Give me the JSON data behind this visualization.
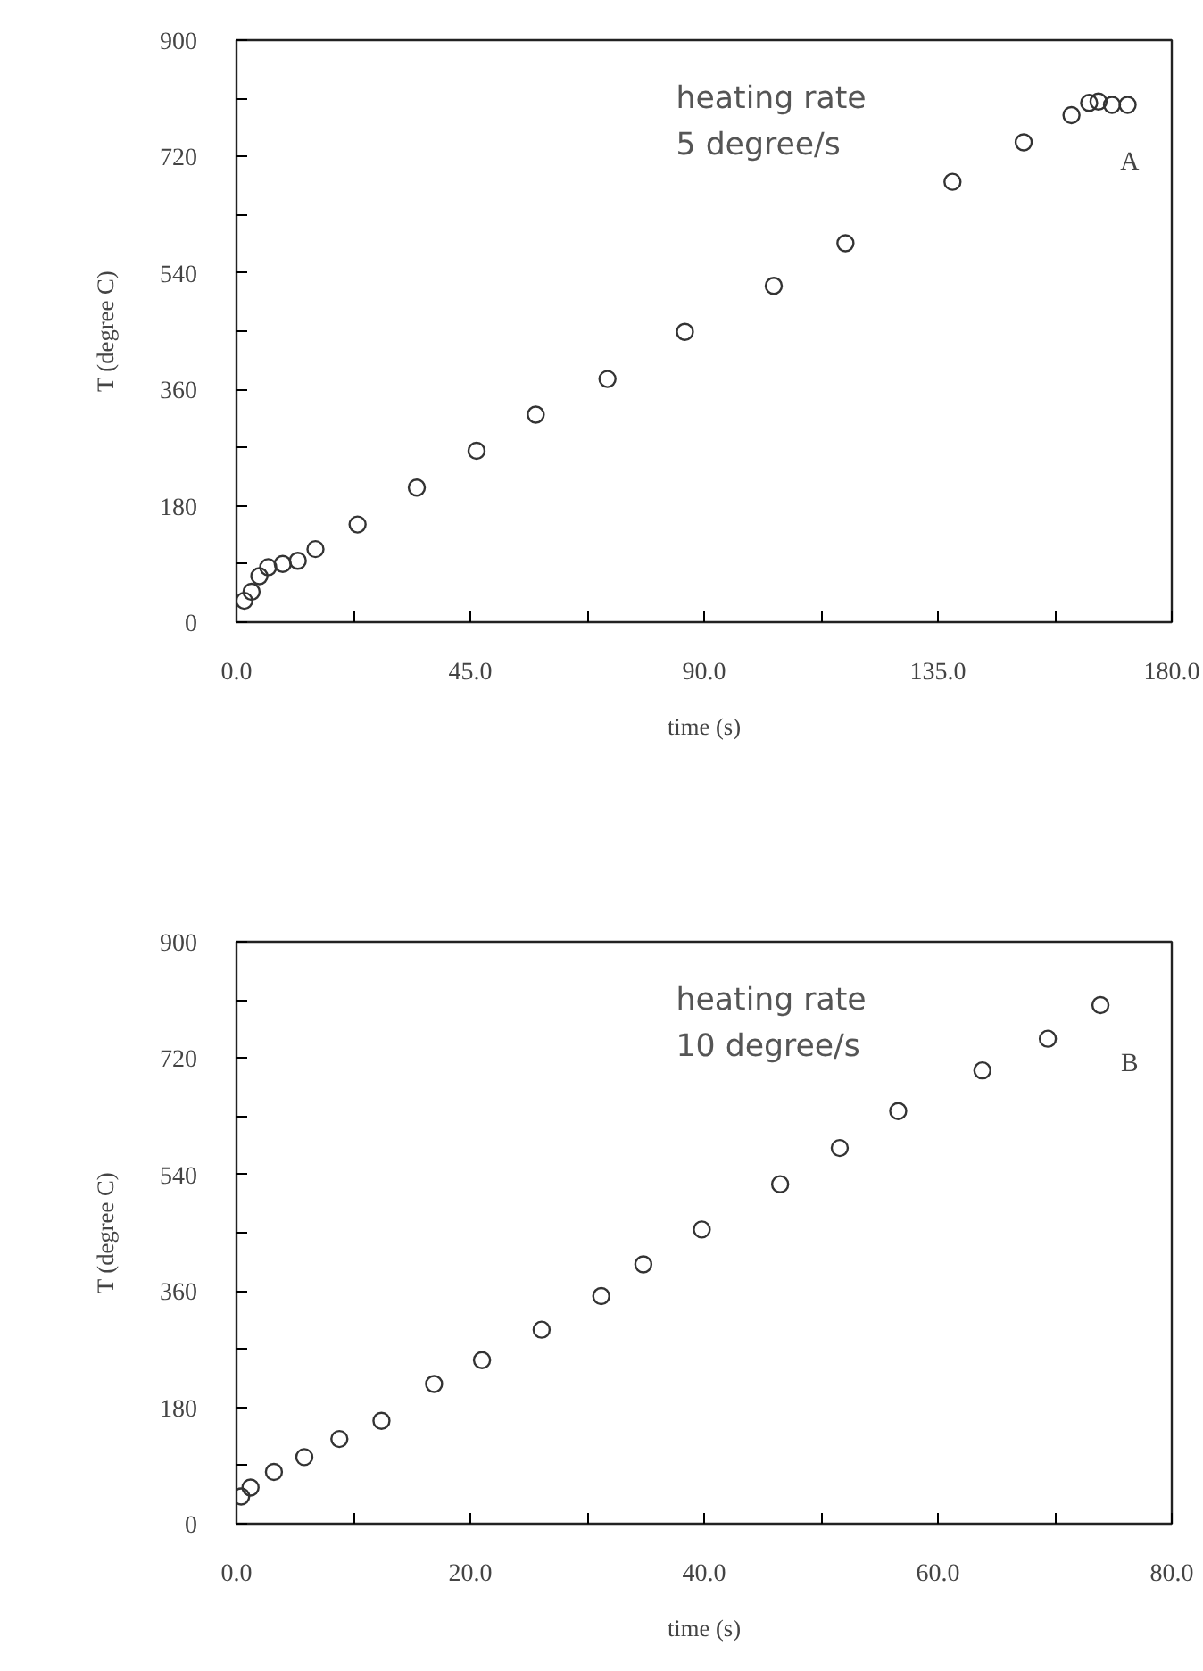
{
  "chart_data": [
    {
      "type": "scatter",
      "xlabel": "time (s)",
      "ylabel": "T (degree C)",
      "annotations": [
        "heating rate\n5 degree/s",
        "A"
      ],
      "x": [
        1.5,
        2.9,
        4.4,
        6.1,
        8.9,
        11.8,
        15.2,
        23.3,
        34.7,
        46.2,
        57.6,
        71.4,
        86.3,
        103.4,
        117.2,
        137.8,
        151.5,
        160.7,
        164.1,
        165.9,
        168.5,
        171.5
      ],
      "series": [
        {
          "color": "#333333",
          "values": [
            33,
            47,
            71,
            85,
            90,
            95,
            113,
            151,
            208,
            265,
            321,
            376,
            449,
            520,
            586,
            681,
            742,
            784,
            803,
            805,
            800,
            800
          ]
        }
      ],
      "xlim": [
        0,
        180
      ],
      "ylim": [
        0,
        900
      ],
      "xticks": [
        {
          "value": 0,
          "label": "0.0"
        },
        {
          "value": 22.5,
          "label": null
        },
        {
          "value": 45,
          "label": "45.0"
        },
        {
          "value": 67.5,
          "label": null
        },
        {
          "value": 90,
          "label": "90.0"
        },
        {
          "value": 112.5,
          "label": null
        },
        {
          "value": 135,
          "label": "135.0"
        },
        {
          "value": 157.5,
          "label": null
        },
        {
          "value": 180,
          "label": "180.0"
        }
      ],
      "yticks": [
        0,
        {
          "value": 90,
          "label": null
        },
        180,
        {
          "value": 270,
          "label": null
        },
        360,
        {
          "value": 450,
          "label": null
        },
        540,
        {
          "value": 630,
          "label": null
        },
        720,
        {
          "value": 810,
          "label": null
        },
        900
      ],
      "grid": false,
      "marker": "circle"
    },
    {
      "type": "scatter",
      "xlabel": "time (s)",
      "ylabel": "T (degree C)",
      "annotations": [
        "heating rate\n10 degree/s",
        "B"
      ],
      "x": [
        0.4,
        1.2,
        3.2,
        5.8,
        8.8,
        12.4,
        16.9,
        21.0,
        26.1,
        31.2,
        34.8,
        39.8,
        46.5,
        51.6,
        56.6,
        63.8,
        69.4,
        73.9
      ],
      "series": [
        {
          "color": "#333333",
          "values": [
            42,
            56,
            80,
            103,
            131,
            159,
            216,
            253,
            300,
            352,
            401,
            455,
            525,
            581,
            638,
            701,
            750,
            802
          ]
        }
      ],
      "xlim": [
        0,
        80
      ],
      "ylim": [
        0,
        900
      ],
      "xticks": [
        {
          "value": 0,
          "label": "0.0"
        },
        {
          "value": 10,
          "label": null
        },
        {
          "value": 20,
          "label": "20.0"
        },
        {
          "value": 30,
          "label": null
        },
        {
          "value": 40,
          "label": "40.0"
        },
        {
          "value": 50,
          "label": null
        },
        {
          "value": 60,
          "label": "60.0"
        },
        {
          "value": 70,
          "label": null
        },
        {
          "value": 80,
          "label": "80.0"
        }
      ],
      "yticks": [
        0,
        {
          "value": 90,
          "label": null
        },
        180,
        {
          "value": 270,
          "label": null
        },
        360,
        {
          "value": 450,
          "label": null
        },
        540,
        {
          "value": 630,
          "label": null
        },
        720,
        {
          "value": 810,
          "label": null
        },
        900
      ],
      "grid": false,
      "marker": "circle"
    }
  ]
}
